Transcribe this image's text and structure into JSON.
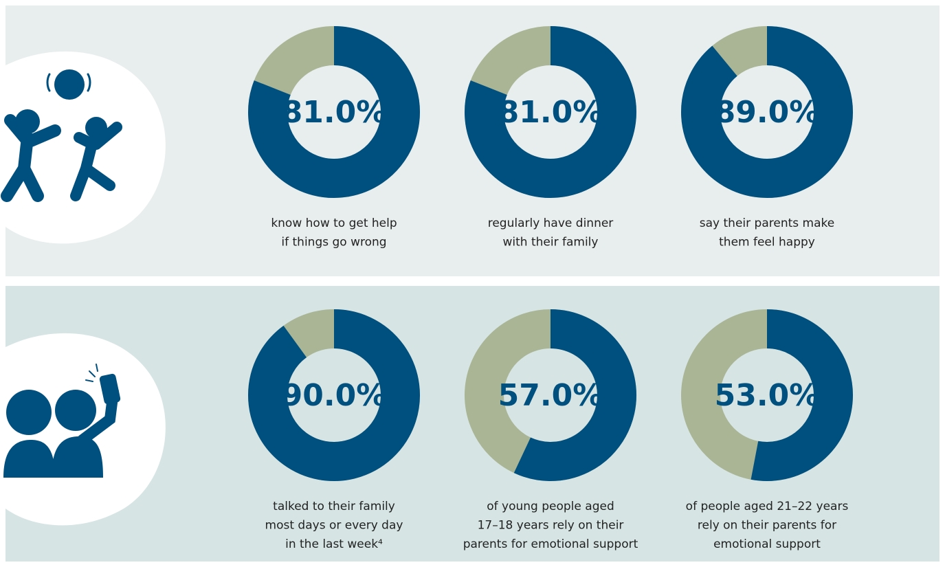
{
  "chart_data": [
    {
      "type": "donut",
      "values": [
        81
      ],
      "value_labels": [
        "81.0%"
      ],
      "caption": [
        "know how to get help",
        "if things go wrong"
      ],
      "color": "#00507f",
      "rest_color": "#a9b595"
    },
    {
      "type": "donut",
      "values": [
        81
      ],
      "value_labels": [
        "81.0%"
      ],
      "caption": [
        "regularly have dinner",
        "with their family"
      ],
      "color": "#00507f",
      "rest_color": "#a9b595"
    },
    {
      "type": "donut",
      "values": [
        89
      ],
      "value_labels": [
        "89.0%"
      ],
      "caption": [
        "say their parents make",
        "them feel happy"
      ],
      "color": "#00507f",
      "rest_color": "#a9b595"
    },
    {
      "type": "donut",
      "values": [
        90
      ],
      "value_labels": [
        "90.0%"
      ],
      "caption": [
        "talked to their family",
        "most days or every day",
        "in the last week⁴"
      ],
      "color": "#00507f",
      "rest_color": "#a9b595"
    },
    {
      "type": "donut",
      "values": [
        57
      ],
      "value_labels": [
        "57.0%"
      ],
      "caption": [
        "of young people aged",
        "17–18 years rely on their",
        "parents for emotional support"
      ],
      "color": "#00507f",
      "rest_color": "#a9b595"
    },
    {
      "type": "donut",
      "values": [
        53
      ],
      "value_labels": [
        "53.0%"
      ],
      "caption": [
        "of people aged 21–22 years",
        "rely on their parents for",
        "emotional support"
      ],
      "color": "#00507f",
      "rest_color": "#a9b595"
    }
  ]
}
